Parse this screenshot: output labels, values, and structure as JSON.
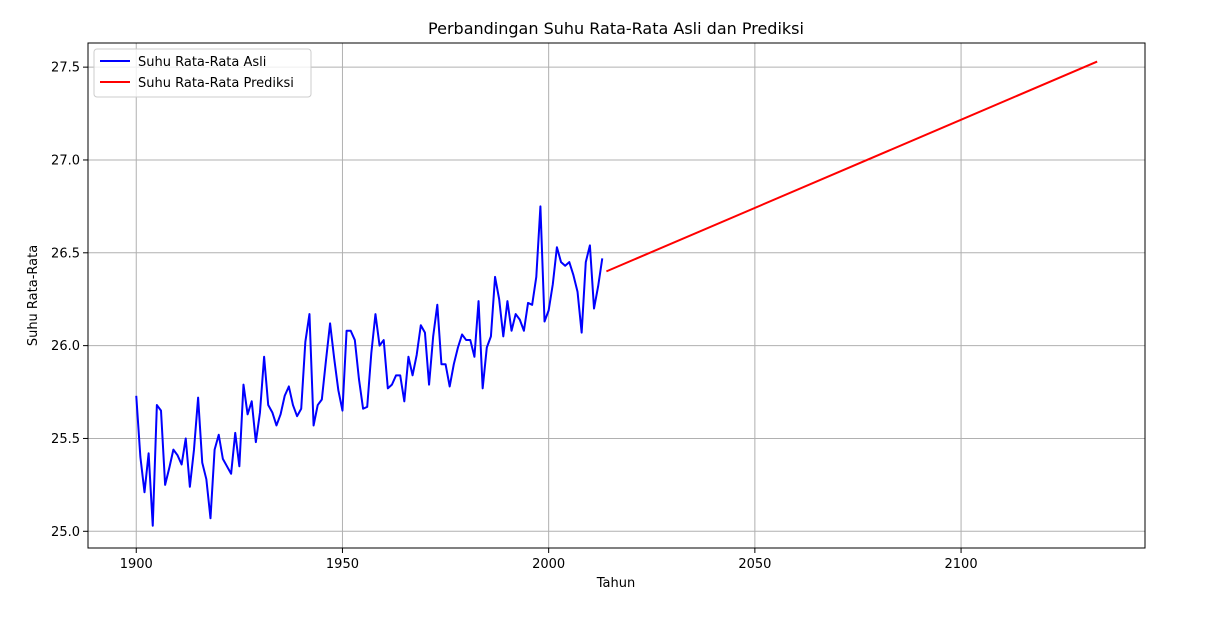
{
  "chart_data": {
    "type": "line",
    "title": "Perbandingan Suhu Rata-Rata Asli dan Prediksi",
    "xlabel": "Tahun",
    "ylabel": "Suhu Rata-Rata",
    "xlim": [
      1888.3,
      2144.6
    ],
    "ylim": [
      24.91,
      27.63
    ],
    "xticks": [
      1900,
      1950,
      2000,
      2050,
      2100
    ],
    "yticks": [
      25.0,
      25.5,
      26.0,
      26.5,
      27.0,
      27.5
    ],
    "xtick_labels": [
      "1900",
      "1950",
      "2000",
      "2050",
      "2100"
    ],
    "ytick_labels": [
      "25.0",
      "25.5",
      "26.0",
      "26.5",
      "27.0",
      "27.5"
    ],
    "grid": true,
    "legend_position": "top-left",
    "series": [
      {
        "name": "Suhu Rata-Rata Asli",
        "color": "#0000ff",
        "x": [
          1900,
          1901,
          1902,
          1903,
          1904,
          1905,
          1906,
          1907,
          1908,
          1909,
          1910,
          1911,
          1912,
          1913,
          1914,
          1915,
          1916,
          1917,
          1918,
          1919,
          1920,
          1921,
          1922,
          1923,
          1924,
          1925,
          1926,
          1927,
          1928,
          1929,
          1930,
          1931,
          1932,
          1933,
          1934,
          1935,
          1936,
          1937,
          1938,
          1939,
          1940,
          1941,
          1942,
          1943,
          1944,
          1945,
          1946,
          1947,
          1948,
          1949,
          1950,
          1951,
          1952,
          1953,
          1954,
          1955,
          1956,
          1957,
          1958,
          1959,
          1960,
          1961,
          1962,
          1963,
          1964,
          1965,
          1966,
          1967,
          1968,
          1969,
          1970,
          1971,
          1972,
          1973,
          1974,
          1975,
          1976,
          1977,
          1978,
          1979,
          1980,
          1981,
          1982,
          1983,
          1984,
          1985,
          1986,
          1987,
          1988,
          1989,
          1990,
          1991,
          1992,
          1993,
          1994,
          1995,
          1996,
          1997,
          1998,
          1999,
          2000,
          2001,
          2002,
          2003,
          2004,
          2005,
          2006,
          2007,
          2008,
          2009,
          2010,
          2011,
          2012,
          2013
        ],
        "y": [
          25.73,
          25.4,
          25.21,
          25.42,
          25.03,
          25.68,
          25.65,
          25.25,
          25.34,
          25.44,
          25.41,
          25.36,
          25.5,
          25.24,
          25.44,
          25.72,
          25.37,
          25.28,
          25.07,
          25.44,
          25.52,
          25.39,
          25.35,
          25.31,
          25.53,
          25.35,
          25.79,
          25.63,
          25.7,
          25.48,
          25.64,
          25.94,
          25.68,
          25.64,
          25.57,
          25.63,
          25.73,
          25.78,
          25.68,
          25.62,
          25.66,
          26.02,
          26.17,
          25.57,
          25.68,
          25.71,
          25.92,
          26.12,
          25.93,
          25.76,
          25.65,
          26.08,
          26.08,
          26.03,
          25.82,
          25.66,
          25.67,
          25.96,
          26.17,
          26.0,
          26.03,
          25.77,
          25.79,
          25.84,
          25.84,
          25.7,
          25.94,
          25.84,
          25.95,
          26.11,
          26.07,
          25.79,
          26.05,
          26.22,
          25.9,
          25.9,
          25.78,
          25.9,
          25.99,
          26.06,
          26.03,
          26.03,
          25.94,
          26.24,
          25.77,
          25.99,
          26.05,
          26.37,
          26.25,
          26.05,
          26.24,
          26.08,
          26.17,
          26.14,
          26.08,
          26.23,
          26.22,
          26.37,
          26.75,
          26.13,
          26.19,
          26.33,
          26.53,
          26.45,
          26.43,
          26.45,
          26.38,
          26.29,
          26.07,
          26.45,
          26.54,
          26.2,
          26.32,
          26.47
        ]
      },
      {
        "name": "Suhu Rata-Rata Prediksi",
        "color": "#ff0000",
        "x": [
          2014,
          2133
        ],
        "y": [
          26.4,
          27.53
        ]
      }
    ]
  }
}
